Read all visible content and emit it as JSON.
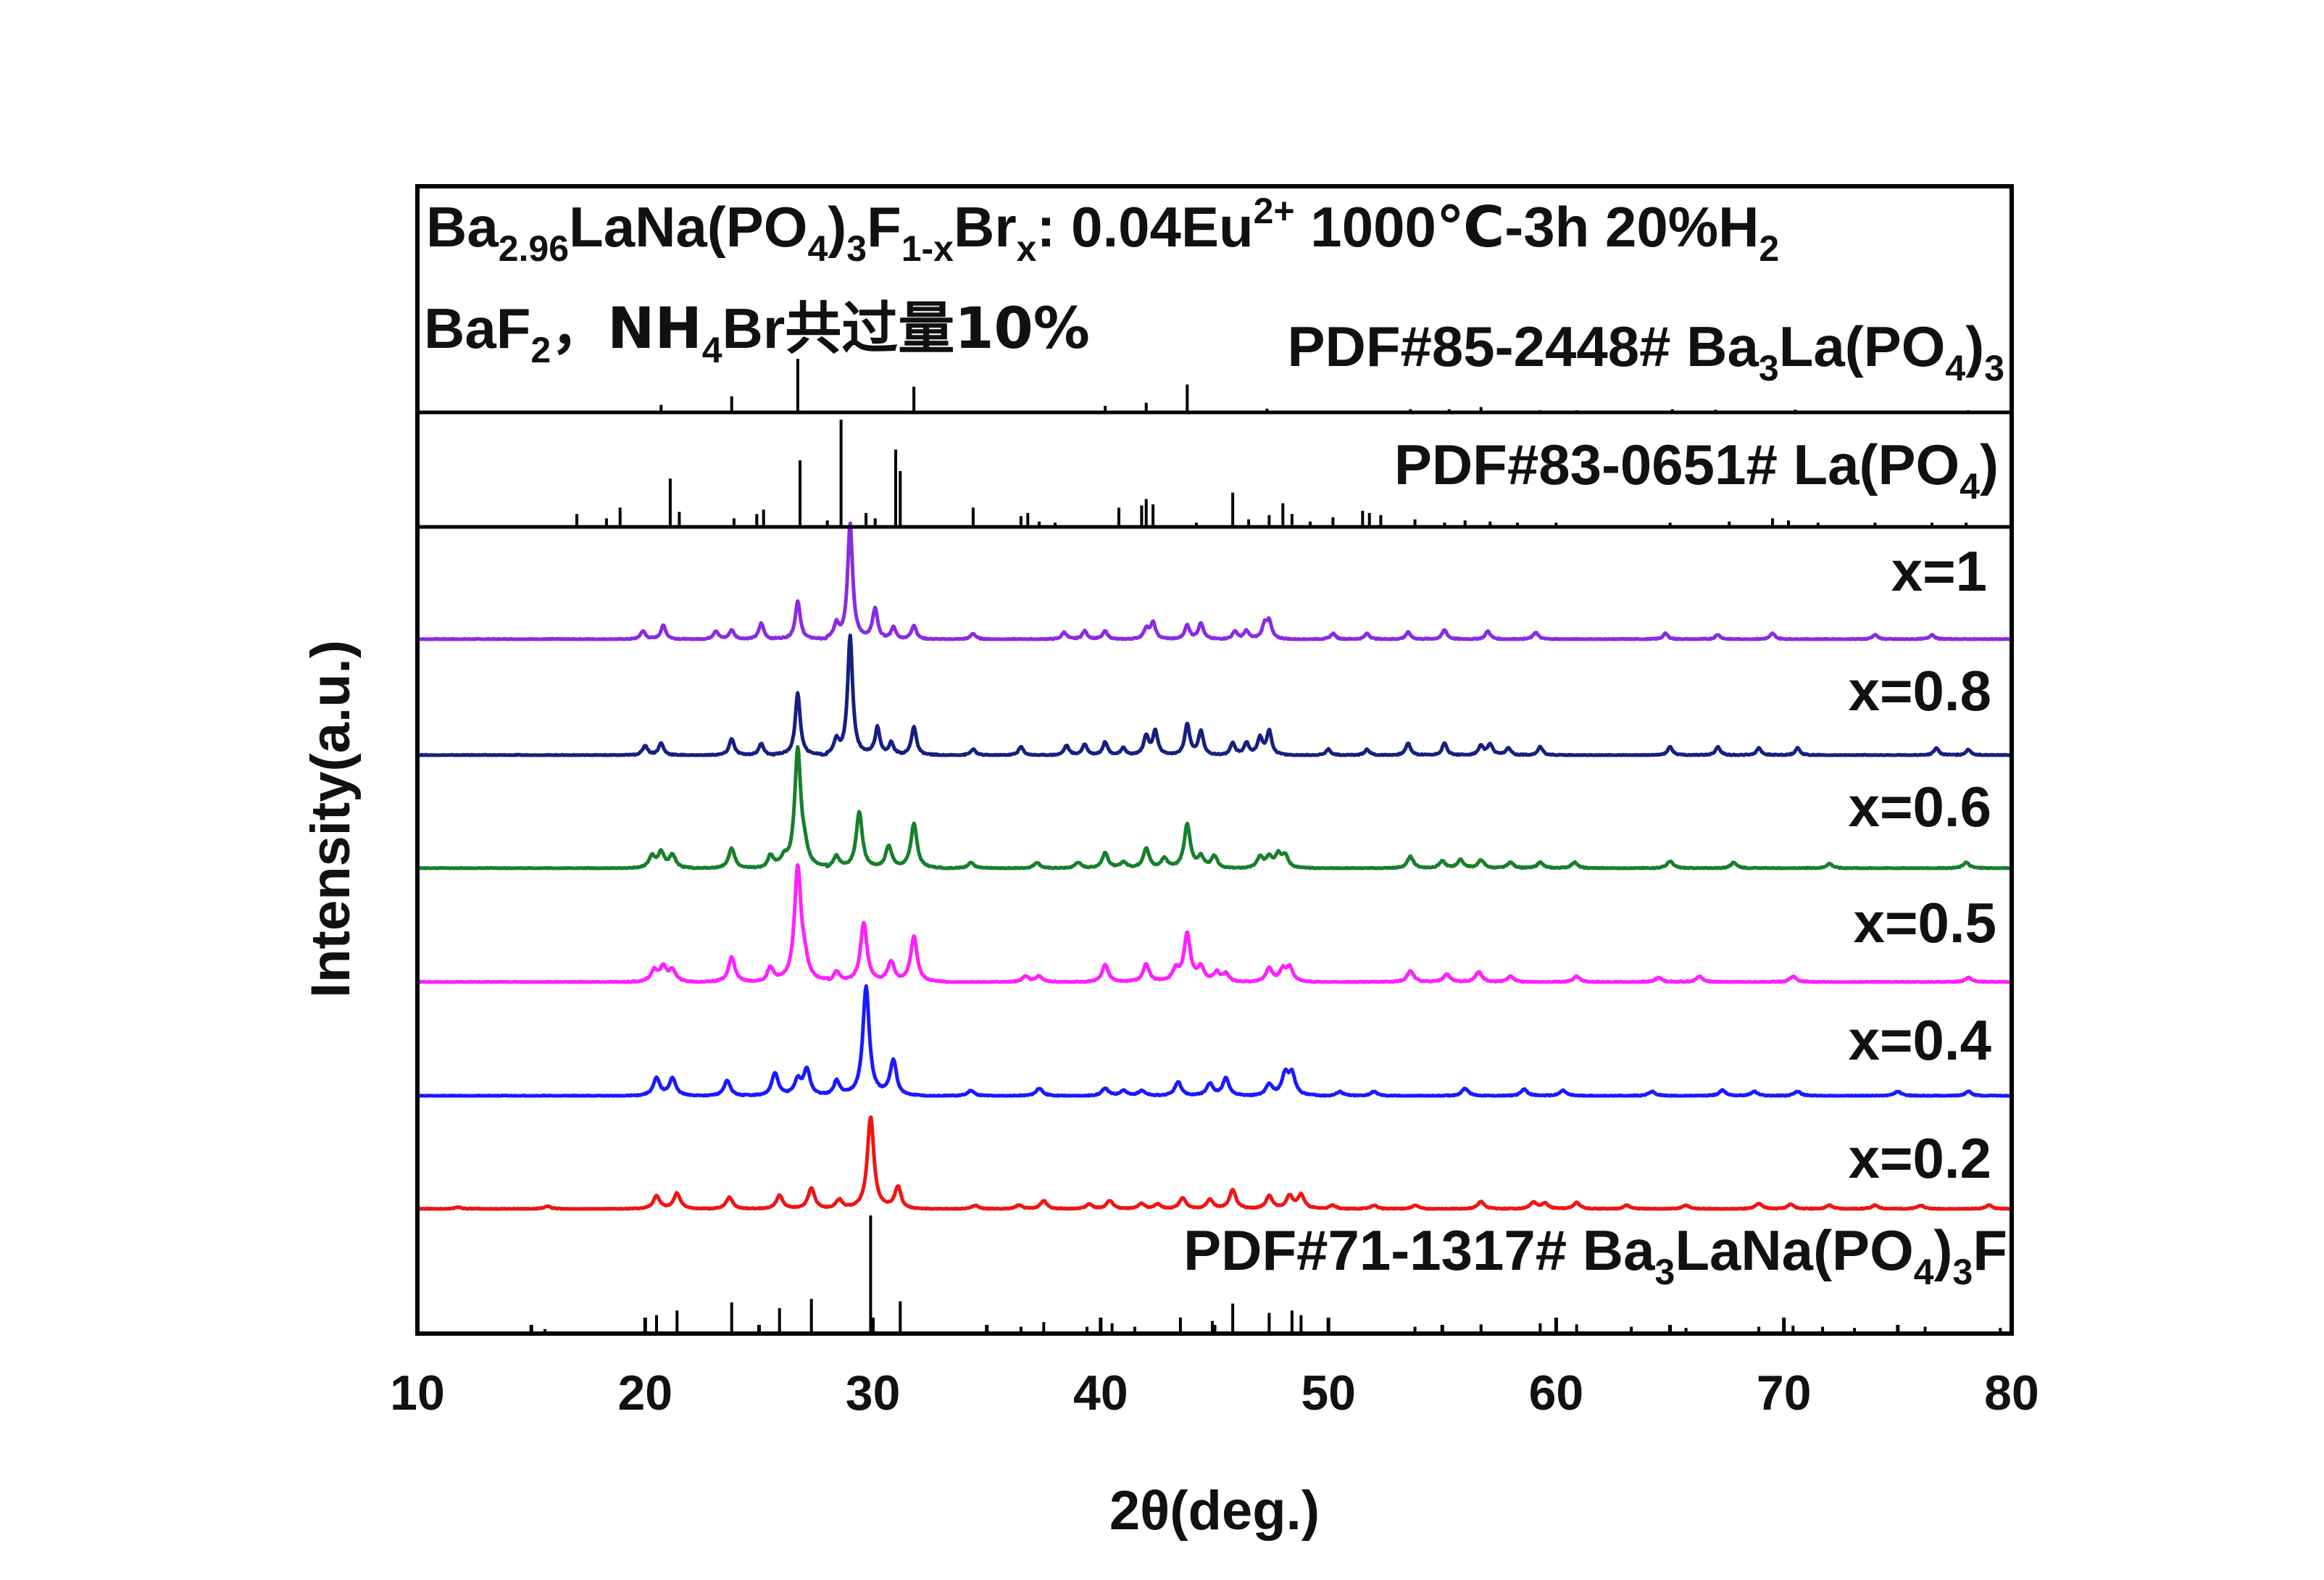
{
  "chart_data": {
    "type": "line",
    "xlabel": "2θ(deg.)",
    "ylabel": "Intensity(a.u.)",
    "xlim": [
      10,
      80
    ],
    "xticks": [
      10,
      20,
      30,
      40,
      50,
      60,
      70,
      80
    ],
    "title": {
      "compound_main": "Ba",
      "sub1": "2.96",
      "part2": "LaNa(PO",
      "sub2": "4",
      "part3": ")",
      "sub3": "3",
      "part4": "F",
      "sub4": "1-x",
      "part5": "Br",
      "sub5": "x",
      "part6": ": 0.04Eu",
      "sup6": "2+",
      "part7": " 1000℃-3h 20%H",
      "sub7": "2"
    },
    "note": {
      "p1": "BaF",
      "s1": "2",
      "p2": "，NH",
      "s2": "4",
      "p3": "Br",
      "p4": "共过量10%"
    },
    "references": [
      {
        "label_main": "PDF#85-2448# Ba",
        "label_sub1": "3",
        "label_mid": "La(PO",
        "label_sub2": "4",
        "label_end": ")",
        "label_sub3": "3",
        "sticks": [
          [
            20.7,
            14
          ],
          [
            23.8,
            30
          ],
          [
            26.7,
            100
          ],
          [
            31.8,
            48
          ],
          [
            40.2,
            12
          ],
          [
            42.0,
            18
          ],
          [
            43.8,
            52
          ],
          [
            47.3,
            7
          ],
          [
            53.6,
            6
          ],
          [
            55.3,
            6
          ],
          [
            56.7,
            10
          ],
          [
            59.3,
            4
          ],
          [
            60.9,
            4
          ],
          [
            65.1,
            6
          ],
          [
            67.0,
            5
          ],
          [
            70.5,
            5
          ],
          [
            72.1,
            3
          ],
          [
            75.7,
            3
          ],
          [
            78.1,
            4
          ]
        ]
      },
      {
        "label_main": "PDF#83-0651# La(PO",
        "label_sub1": "4",
        "label_end": ")",
        "sticks": [
          [
            17.0,
            12
          ],
          [
            18.3,
            8
          ],
          [
            18.9,
            18
          ],
          [
            21.1,
            45
          ],
          [
            21.5,
            14
          ],
          [
            23.9,
            8
          ],
          [
            24.9,
            12
          ],
          [
            25.2,
            16
          ],
          [
            26.8,
            62
          ],
          [
            28.0,
            6
          ],
          [
            28.6,
            100
          ],
          [
            29.7,
            13
          ],
          [
            30.1,
            8
          ],
          [
            31.0,
            72
          ],
          [
            31.2,
            52
          ],
          [
            34.4,
            18
          ],
          [
            36.5,
            10
          ],
          [
            36.8,
            13
          ],
          [
            37.3,
            5
          ],
          [
            38.0,
            4
          ],
          [
            40.8,
            18
          ],
          [
            41.8,
            20
          ],
          [
            42.0,
            26
          ],
          [
            42.3,
            21
          ],
          [
            44.2,
            4
          ],
          [
            45.8,
            32
          ],
          [
            46.5,
            7
          ],
          [
            47.4,
            11
          ],
          [
            48.0,
            22
          ],
          [
            48.4,
            12
          ],
          [
            49.2,
            5
          ],
          [
            50.2,
            9
          ],
          [
            51.5,
            15
          ],
          [
            51.8,
            13
          ],
          [
            52.3,
            11
          ],
          [
            53.8,
            7
          ],
          [
            55.1,
            4
          ],
          [
            56.0,
            6
          ],
          [
            57.1,
            5
          ],
          [
            58.3,
            4
          ],
          [
            60.0,
            4
          ],
          [
            65.0,
            4
          ],
          [
            67.6,
            5
          ],
          [
            69.5,
            8
          ],
          [
            70.2,
            6
          ],
          [
            71.5,
            4
          ],
          [
            74.0,
            4
          ],
          [
            76.5,
            4
          ],
          [
            78.0,
            4
          ]
        ]
      },
      {
        "label_main": "PDF#71-1317# Ba",
        "label_sub1": "3",
        "label_mid": "LaNa(PO",
        "label_sub2": "4",
        "label_end": ")",
        "label_sub3": "3",
        "label_tail": "F",
        "sticks": [
          [
            15.6,
            2
          ],
          [
            20.5,
            14
          ],
          [
            21.4,
            18
          ],
          [
            23.8,
            25
          ],
          [
            25.9,
            20
          ],
          [
            27.3,
            28
          ],
          [
            29.9,
            100
          ],
          [
            31.2,
            26
          ],
          [
            36.5,
            4
          ],
          [
            37.5,
            8
          ],
          [
            39.4,
            4
          ],
          [
            40.5,
            7
          ],
          [
            41.5,
            4
          ],
          [
            43.5,
            12
          ],
          [
            44.9,
            9
          ],
          [
            45.8,
            24
          ],
          [
            47.4,
            16
          ],
          [
            48.4,
            18
          ],
          [
            48.8,
            14
          ],
          [
            53.8,
            4
          ],
          [
            56.7,
            6
          ],
          [
            59.3,
            7
          ],
          [
            60.9,
            6
          ],
          [
            63.3,
            4
          ],
          [
            65.7,
            3
          ],
          [
            68.9,
            4
          ],
          [
            70.4,
            5
          ],
          [
            71.7,
            4
          ],
          [
            73.1,
            3
          ],
          [
            76.2,
            4
          ],
          [
            79.5,
            3
          ]
        ]
      }
    ],
    "series": [
      {
        "name": "x=1",
        "color": "#8a2be2",
        "peaks": [
          [
            19.9,
            7
          ],
          [
            20.8,
            12
          ],
          [
            23.1,
            7
          ],
          [
            23.8,
            8
          ],
          [
            25.1,
            14
          ],
          [
            26.7,
            33
          ],
          [
            28.4,
            12
          ],
          [
            29.0,
            100
          ],
          [
            30.1,
            27
          ],
          [
            30.9,
            10
          ],
          [
            31.8,
            12
          ],
          [
            34.4,
            5
          ],
          [
            38.4,
            6
          ],
          [
            39.3,
            7
          ],
          [
            40.2,
            7
          ],
          [
            42.0,
            9
          ],
          [
            42.3,
            14
          ],
          [
            43.8,
            12
          ],
          [
            44.4,
            14
          ],
          [
            45.9,
            7
          ],
          [
            46.4,
            7
          ],
          [
            47.2,
            12
          ],
          [
            47.4,
            14
          ],
          [
            50.2,
            5
          ],
          [
            51.7,
            5
          ],
          [
            53.5,
            6
          ],
          [
            55.1,
            8
          ],
          [
            57.0,
            7
          ],
          [
            59.1,
            6
          ],
          [
            64.8,
            5
          ],
          [
            67.1,
            4
          ],
          [
            69.5,
            5
          ],
          [
            74.0,
            4
          ],
          [
            76.5,
            4
          ]
        ],
        "width": 0.13
      },
      {
        "name": "x=0.8",
        "color": "#152080",
        "peaks": [
          [
            20.0,
            8
          ],
          [
            20.7,
            10
          ],
          [
            23.8,
            14
          ],
          [
            25.1,
            10
          ],
          [
            26.7,
            52
          ],
          [
            28.4,
            12
          ],
          [
            29.0,
            100
          ],
          [
            30.2,
            24
          ],
          [
            30.8,
            10
          ],
          [
            31.8,
            24
          ],
          [
            34.4,
            5
          ],
          [
            36.5,
            7
          ],
          [
            38.5,
            8
          ],
          [
            39.3,
            9
          ],
          [
            40.2,
            11
          ],
          [
            41.0,
            6
          ],
          [
            42.0,
            16
          ],
          [
            42.4,
            20
          ],
          [
            43.8,
            26
          ],
          [
            44.4,
            20
          ],
          [
            45.8,
            10
          ],
          [
            46.4,
            10
          ],
          [
            47.0,
            14
          ],
          [
            47.4,
            20
          ],
          [
            50.0,
            5
          ],
          [
            51.7,
            5
          ],
          [
            53.5,
            10
          ],
          [
            55.1,
            10
          ],
          [
            56.7,
            8
          ],
          [
            57.1,
            9
          ],
          [
            57.9,
            6
          ],
          [
            59.3,
            7
          ],
          [
            65.0,
            7
          ],
          [
            67.1,
            7
          ],
          [
            68.9,
            6
          ],
          [
            70.6,
            6
          ],
          [
            76.7,
            6
          ],
          [
            78.1,
            5
          ]
        ],
        "width": 0.13
      },
      {
        "name": "x=0.6",
        "color": "#16802c",
        "peaks": [
          [
            20.3,
            10
          ],
          [
            20.7,
            13
          ],
          [
            21.2,
            11
          ],
          [
            23.8,
            17
          ],
          [
            25.5,
            10
          ],
          [
            26.1,
            7
          ],
          [
            26.7,
            100
          ],
          [
            27.0,
            12
          ],
          [
            28.4,
            10
          ],
          [
            29.4,
            48
          ],
          [
            30.7,
            19
          ],
          [
            31.8,
            38
          ],
          [
            34.3,
            5
          ],
          [
            37.2,
            5
          ],
          [
            39.0,
            5
          ],
          [
            40.2,
            13
          ],
          [
            41.0,
            5
          ],
          [
            42.0,
            17
          ],
          [
            42.8,
            8
          ],
          [
            43.8,
            37
          ],
          [
            44.4,
            9
          ],
          [
            45.0,
            10
          ],
          [
            47.0,
            9
          ],
          [
            47.4,
            9
          ],
          [
            47.8,
            11
          ],
          [
            48.1,
            10
          ],
          [
            53.6,
            10
          ],
          [
            55.0,
            6
          ],
          [
            55.8,
            7
          ],
          [
            56.7,
            7
          ],
          [
            58.0,
            5
          ],
          [
            59.3,
            5
          ],
          [
            60.8,
            5
          ],
          [
            65.0,
            6
          ],
          [
            67.8,
            5
          ],
          [
            72.0,
            4
          ],
          [
            78.0,
            5
          ]
        ],
        "width": 0.16
      },
      {
        "name": "x=0.5",
        "color": "#ff1fff",
        "peaks": [
          [
            20.4,
            10
          ],
          [
            20.8,
            13
          ],
          [
            21.2,
            10
          ],
          [
            23.8,
            22
          ],
          [
            25.5,
            12
          ],
          [
            26.7,
            100
          ],
          [
            27.0,
            14
          ],
          [
            28.4,
            9
          ],
          [
            29.6,
            52
          ],
          [
            30.8,
            17
          ],
          [
            31.8,
            40
          ],
          [
            36.7,
            5
          ],
          [
            37.3,
            5
          ],
          [
            40.2,
            15
          ],
          [
            42.0,
            16
          ],
          [
            43.3,
            10
          ],
          [
            43.8,
            42
          ],
          [
            44.4,
            12
          ],
          [
            45.1,
            8
          ],
          [
            45.5,
            7
          ],
          [
            47.4,
            12
          ],
          [
            48.0,
            10
          ],
          [
            48.3,
            12
          ],
          [
            53.6,
            10
          ],
          [
            55.2,
            7
          ],
          [
            56.6,
            9
          ],
          [
            58.0,
            5
          ],
          [
            60.9,
            5
          ],
          [
            64.5,
            4
          ],
          [
            66.3,
            5
          ],
          [
            70.4,
            5
          ],
          [
            78.1,
            4
          ]
        ],
        "width": 0.17
      },
      {
        "name": "x=0.4",
        "color": "#1a1aff",
        "peaks": [
          [
            20.5,
            16
          ],
          [
            21.2,
            16
          ],
          [
            23.6,
            14
          ],
          [
            25.7,
            21
          ],
          [
            26.7,
            14
          ],
          [
            27.1,
            24
          ],
          [
            28.4,
            13
          ],
          [
            29.7,
            100
          ],
          [
            30.9,
            32
          ],
          [
            34.3,
            5
          ],
          [
            37.3,
            7
          ],
          [
            40.2,
            7
          ],
          [
            41.0,
            5
          ],
          [
            41.8,
            5
          ],
          [
            43.4,
            13
          ],
          [
            44.8,
            11
          ],
          [
            45.5,
            16
          ],
          [
            47.4,
            10
          ],
          [
            48.1,
            19
          ],
          [
            48.4,
            19
          ],
          [
            50.5,
            4
          ],
          [
            52.0,
            4
          ],
          [
            56.0,
            7
          ],
          [
            58.6,
            6
          ],
          [
            60.3,
            5
          ],
          [
            64.2,
            4
          ],
          [
            67.3,
            5
          ],
          [
            68.7,
            4
          ],
          [
            70.6,
            4
          ],
          [
            75.0,
            4
          ],
          [
            78.1,
            4
          ]
        ],
        "width": 0.17
      },
      {
        "name": "x=0.2",
        "color": "#f01414",
        "peaks": [
          [
            11.8,
            2
          ],
          [
            15.7,
            3
          ],
          [
            20.5,
            14
          ],
          [
            21.4,
            17
          ],
          [
            23.7,
            13
          ],
          [
            25.9,
            15
          ],
          [
            27.3,
            23
          ],
          [
            28.5,
            10
          ],
          [
            29.9,
            100
          ],
          [
            31.1,
            23
          ],
          [
            34.5,
            4
          ],
          [
            36.4,
            4
          ],
          [
            37.5,
            9
          ],
          [
            39.5,
            5
          ],
          [
            40.4,
            9
          ],
          [
            41.8,
            6
          ],
          [
            42.5,
            5
          ],
          [
            43.6,
            12
          ],
          [
            44.8,
            10
          ],
          [
            45.8,
            21
          ],
          [
            47.4,
            14
          ],
          [
            48.3,
            14
          ],
          [
            48.8,
            15
          ],
          [
            50.2,
            4
          ],
          [
            52.0,
            4
          ],
          [
            53.8,
            4
          ],
          [
            56.7,
            8
          ],
          [
            59.0,
            7
          ],
          [
            59.5,
            6
          ],
          [
            60.9,
            7
          ],
          [
            63.1,
            4
          ],
          [
            65.7,
            4
          ],
          [
            68.9,
            6
          ],
          [
            70.3,
            5
          ],
          [
            72.0,
            4
          ],
          [
            74.0,
            4
          ],
          [
            76.0,
            4
          ],
          [
            79.0,
            4
          ]
        ],
        "width": 0.17
      }
    ]
  }
}
